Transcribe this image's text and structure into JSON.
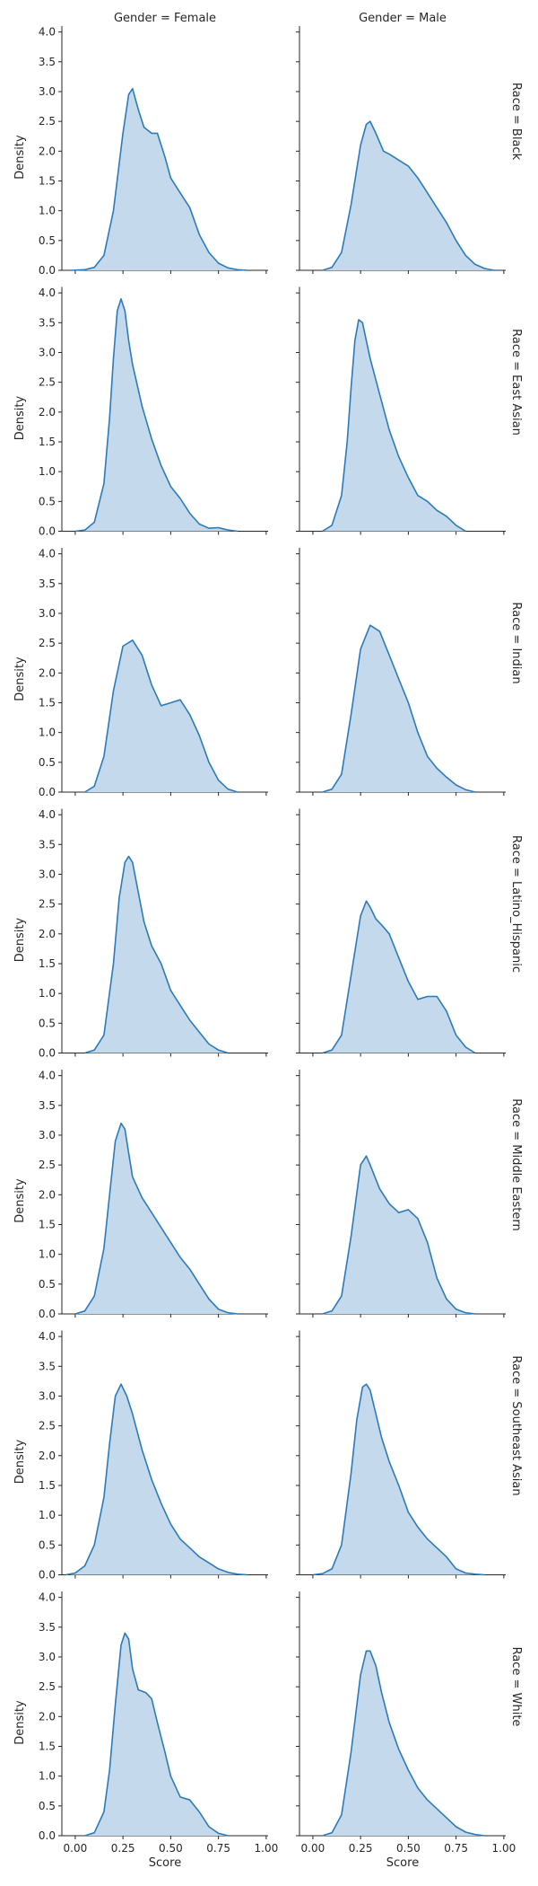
{
  "chart_data": {
    "type": "area",
    "col_titles": [
      "Gender = Female",
      "Gender = Male"
    ],
    "row_titles": [
      "Race = Black",
      "Race = East Asian",
      "Race = Indian",
      "Race = Latino_Hispanic",
      "Race = Middle Eastern",
      "Race = Southeast Asian",
      "Race = White"
    ],
    "xlabel": "Score",
    "ylabel": "Density",
    "xlim": [
      -0.07,
      1.01
    ],
    "ylim": [
      0,
      4.1
    ],
    "x_ticks": [
      "0.00",
      "0.25",
      "0.50",
      "0.75",
      "1.00"
    ],
    "y_ticks": [
      "0.0",
      "0.5",
      "1.0",
      "1.5",
      "2.0",
      "2.5",
      "3.0",
      "3.5",
      "4.0"
    ],
    "fill_color": "#c5d9ec",
    "line_color": "#2b7bba",
    "series": [
      {
        "row": "Race = Black",
        "col": "Gender = Female",
        "x": [
          -0.02,
          0.05,
          0.1,
          0.15,
          0.2,
          0.25,
          0.28,
          0.3,
          0.33,
          0.36,
          0.4,
          0.43,
          0.47,
          0.5,
          0.55,
          0.6,
          0.65,
          0.7,
          0.75,
          0.8,
          0.85,
          0.9
        ],
        "y": [
          0,
          0.01,
          0.05,
          0.25,
          1.0,
          2.3,
          2.95,
          3.05,
          2.7,
          2.4,
          2.3,
          2.3,
          1.9,
          1.55,
          1.3,
          1.05,
          0.6,
          0.3,
          0.12,
          0.04,
          0.01,
          0
        ]
      },
      {
        "row": "Race = Black",
        "col": "Gender = Male",
        "x": [
          0.05,
          0.1,
          0.15,
          0.2,
          0.25,
          0.28,
          0.3,
          0.33,
          0.37,
          0.4,
          0.45,
          0.5,
          0.55,
          0.6,
          0.65,
          0.7,
          0.75,
          0.8,
          0.85,
          0.9,
          0.95
        ],
        "y": [
          0,
          0.05,
          0.3,
          1.1,
          2.1,
          2.45,
          2.5,
          2.3,
          2.0,
          1.95,
          1.85,
          1.75,
          1.55,
          1.3,
          1.05,
          0.8,
          0.5,
          0.25,
          0.1,
          0.03,
          0
        ]
      },
      {
        "row": "Race = East Asian",
        "col": "Gender = Female",
        "x": [
          0.0,
          0.05,
          0.1,
          0.15,
          0.18,
          0.2,
          0.22,
          0.24,
          0.26,
          0.28,
          0.3,
          0.35,
          0.4,
          0.45,
          0.5,
          0.55,
          0.6,
          0.65,
          0.7,
          0.75,
          0.8,
          0.85
        ],
        "y": [
          0,
          0.02,
          0.15,
          0.8,
          1.9,
          2.9,
          3.7,
          3.9,
          3.7,
          3.2,
          2.8,
          2.1,
          1.55,
          1.1,
          0.75,
          0.55,
          0.3,
          0.12,
          0.05,
          0.06,
          0.02,
          0
        ]
      },
      {
        "row": "Race = East Asian",
        "col": "Gender = Male",
        "x": [
          0.05,
          0.1,
          0.15,
          0.18,
          0.2,
          0.22,
          0.24,
          0.26,
          0.28,
          0.3,
          0.35,
          0.4,
          0.45,
          0.5,
          0.55,
          0.6,
          0.65,
          0.7,
          0.75,
          0.8
        ],
        "y": [
          0,
          0.1,
          0.6,
          1.5,
          2.4,
          3.2,
          3.55,
          3.5,
          3.2,
          2.9,
          2.3,
          1.7,
          1.25,
          0.9,
          0.6,
          0.5,
          0.35,
          0.25,
          0.1,
          0
        ]
      },
      {
        "row": "Race = Indian",
        "col": "Gender = Female",
        "x": [
          0.05,
          0.1,
          0.15,
          0.2,
          0.25,
          0.3,
          0.35,
          0.4,
          0.45,
          0.5,
          0.55,
          0.6,
          0.65,
          0.7,
          0.75,
          0.8,
          0.85
        ],
        "y": [
          0,
          0.1,
          0.6,
          1.7,
          2.45,
          2.55,
          2.3,
          1.8,
          1.45,
          1.5,
          1.55,
          1.3,
          0.95,
          0.5,
          0.2,
          0.05,
          0
        ]
      },
      {
        "row": "Race = Indian",
        "col": "Gender = Male",
        "x": [
          0.05,
          0.1,
          0.15,
          0.2,
          0.25,
          0.3,
          0.35,
          0.4,
          0.45,
          0.5,
          0.55,
          0.6,
          0.65,
          0.7,
          0.75,
          0.8,
          0.85
        ],
        "y": [
          0,
          0.05,
          0.3,
          1.3,
          2.4,
          2.8,
          2.7,
          2.3,
          1.9,
          1.5,
          1.0,
          0.6,
          0.4,
          0.25,
          0.12,
          0.04,
          0
        ]
      },
      {
        "row": "Race = Latino_Hispanic",
        "col": "Gender = Female",
        "x": [
          0.05,
          0.1,
          0.15,
          0.2,
          0.23,
          0.26,
          0.28,
          0.3,
          0.33,
          0.36,
          0.4,
          0.45,
          0.5,
          0.55,
          0.6,
          0.65,
          0.7,
          0.75,
          0.8
        ],
        "y": [
          0,
          0.05,
          0.3,
          1.5,
          2.6,
          3.2,
          3.3,
          3.2,
          2.7,
          2.2,
          1.8,
          1.5,
          1.05,
          0.8,
          0.55,
          0.35,
          0.15,
          0.05,
          0
        ]
      },
      {
        "row": "Race = Latino_Hispanic",
        "col": "Gender = Male",
        "x": [
          0.05,
          0.1,
          0.15,
          0.2,
          0.25,
          0.28,
          0.3,
          0.33,
          0.36,
          0.4,
          0.45,
          0.5,
          0.55,
          0.6,
          0.65,
          0.7,
          0.75,
          0.8,
          0.85
        ],
        "y": [
          0,
          0.05,
          0.3,
          1.3,
          2.3,
          2.55,
          2.45,
          2.25,
          2.15,
          2.0,
          1.6,
          1.2,
          0.9,
          0.95,
          0.95,
          0.7,
          0.3,
          0.1,
          0
        ]
      },
      {
        "row": "Race = Middle Eastern",
        "col": "Gender = Female",
        "x": [
          0.0,
          0.05,
          0.1,
          0.15,
          0.18,
          0.21,
          0.24,
          0.26,
          0.28,
          0.3,
          0.35,
          0.4,
          0.45,
          0.5,
          0.55,
          0.6,
          0.65,
          0.7,
          0.75,
          0.8,
          0.85
        ],
        "y": [
          0,
          0.05,
          0.3,
          1.1,
          2.0,
          2.9,
          3.2,
          3.1,
          2.7,
          2.3,
          1.95,
          1.7,
          1.45,
          1.2,
          0.95,
          0.75,
          0.5,
          0.25,
          0.08,
          0.02,
          0
        ]
      },
      {
        "row": "Race = Middle Eastern",
        "col": "Gender = Male",
        "x": [
          0.05,
          0.1,
          0.15,
          0.2,
          0.25,
          0.28,
          0.3,
          0.35,
          0.4,
          0.45,
          0.5,
          0.55,
          0.6,
          0.65,
          0.7,
          0.75,
          0.8,
          0.85
        ],
        "y": [
          0,
          0.05,
          0.3,
          1.3,
          2.5,
          2.65,
          2.5,
          2.1,
          1.85,
          1.7,
          1.75,
          1.6,
          1.2,
          0.6,
          0.25,
          0.08,
          0.02,
          0
        ]
      },
      {
        "row": "Race = Southeast Asian",
        "col": "Gender = Female",
        "x": [
          -0.05,
          0.0,
          0.05,
          0.1,
          0.15,
          0.18,
          0.21,
          0.24,
          0.27,
          0.3,
          0.35,
          0.4,
          0.45,
          0.5,
          0.55,
          0.6,
          0.65,
          0.7,
          0.75,
          0.8,
          0.85,
          0.9
        ],
        "y": [
          0,
          0.03,
          0.15,
          0.5,
          1.3,
          2.2,
          3.0,
          3.2,
          3.0,
          2.7,
          2.1,
          1.6,
          1.2,
          0.85,
          0.6,
          0.45,
          0.3,
          0.2,
          0.1,
          0.04,
          0.01,
          0
        ]
      },
      {
        "row": "Race = Southeast Asian",
        "col": "Gender = Male",
        "x": [
          0.0,
          0.05,
          0.1,
          0.15,
          0.2,
          0.23,
          0.26,
          0.28,
          0.3,
          0.33,
          0.36,
          0.4,
          0.45,
          0.5,
          0.55,
          0.6,
          0.65,
          0.7,
          0.75,
          0.8,
          0.85,
          0.9
        ],
        "y": [
          0,
          0.02,
          0.1,
          0.5,
          1.7,
          2.6,
          3.15,
          3.2,
          3.1,
          2.7,
          2.3,
          1.9,
          1.5,
          1.05,
          0.8,
          0.6,
          0.45,
          0.3,
          0.1,
          0.03,
          0.01,
          0
        ]
      },
      {
        "row": "Race = White",
        "col": "Gender = Female",
        "x": [
          0.05,
          0.1,
          0.15,
          0.18,
          0.21,
          0.24,
          0.26,
          0.28,
          0.3,
          0.33,
          0.37,
          0.4,
          0.43,
          0.47,
          0.5,
          0.55,
          0.6,
          0.65,
          0.7,
          0.75,
          0.8
        ],
        "y": [
          0,
          0.05,
          0.4,
          1.1,
          2.2,
          3.2,
          3.4,
          3.3,
          2.8,
          2.45,
          2.4,
          2.3,
          1.9,
          1.4,
          1.0,
          0.65,
          0.6,
          0.4,
          0.15,
          0.04,
          0
        ]
      },
      {
        "row": "Race = White",
        "col": "Gender = Male",
        "x": [
          0.05,
          0.1,
          0.15,
          0.2,
          0.25,
          0.28,
          0.3,
          0.33,
          0.36,
          0.4,
          0.45,
          0.5,
          0.55,
          0.6,
          0.65,
          0.7,
          0.75,
          0.8,
          0.85,
          0.9
        ],
        "y": [
          0,
          0.05,
          0.35,
          1.4,
          2.7,
          3.1,
          3.1,
          2.85,
          2.4,
          1.9,
          1.45,
          1.1,
          0.8,
          0.6,
          0.45,
          0.3,
          0.15,
          0.06,
          0.02,
          0
        ]
      }
    ]
  }
}
